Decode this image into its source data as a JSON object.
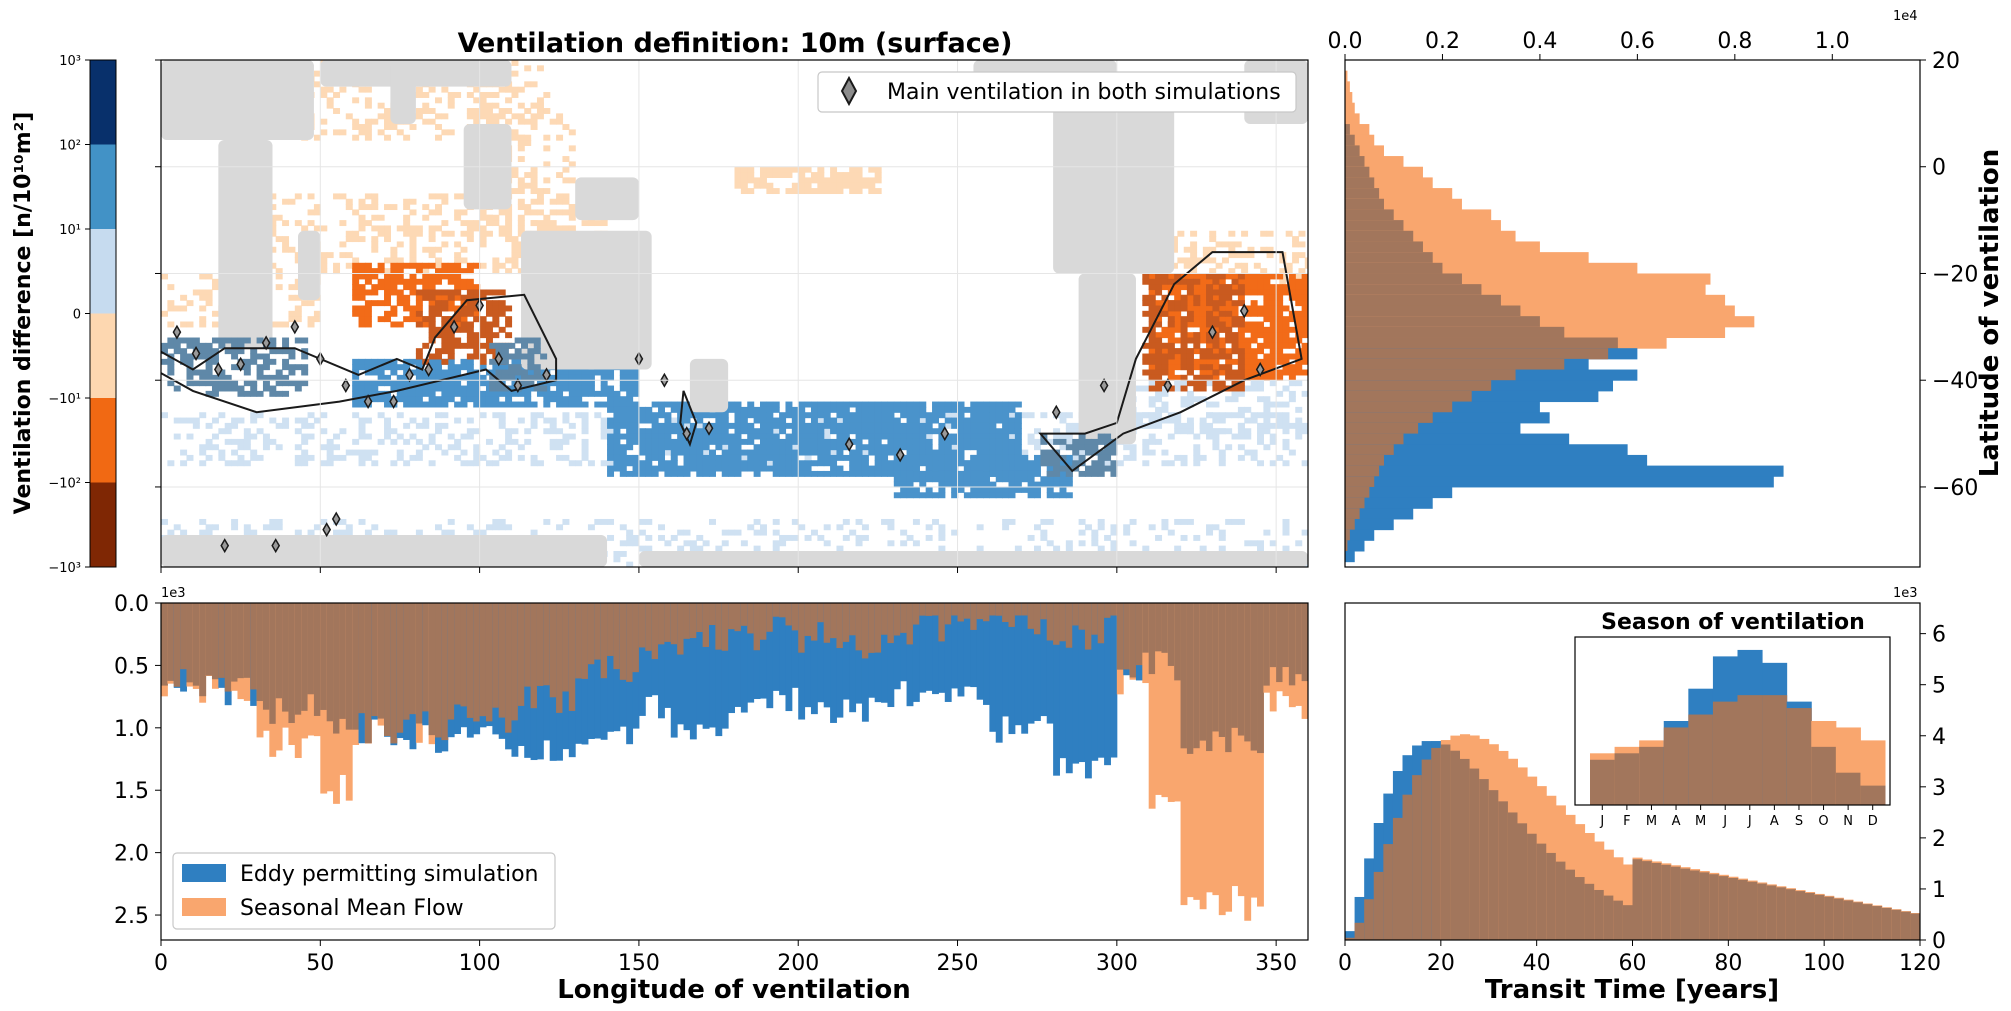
{
  "colors": {
    "eddy": "#2f7fc1",
    "smf": "#f9a66e",
    "overlap": "#a2765c",
    "land": "#d9d9d9",
    "contour": "#1a1a1a"
  },
  "colorbar": {
    "label": "Ventilation difference [n/10¹⁰m²]",
    "ticks": [
      "10³",
      "10²",
      "10¹",
      "0",
      "−10¹",
      "−10²",
      "−10³"
    ],
    "colors": [
      "#08306b",
      "#4292c6",
      "#c6dbef",
      "#fdd7b0",
      "#f16913",
      "#7f2704"
    ]
  },
  "map": {
    "title": "Ventilation definition: 10m (surface)",
    "legend": "Main ventilation in both simulations",
    "xlim": [
      0,
      360
    ],
    "ylim": [
      -75,
      20
    ],
    "colors": {
      "dblue": "#08306b",
      "mblue": "#4a93cb",
      "lblue": "#cfe1f2",
      "lorange": "#fdd9b5",
      "morange": "#f26b18",
      "overlap_orange": "#c95a1f",
      "overlap_blue": "#5f88a8"
    },
    "regions": [
      {
        "lon": [
          0,
          360
        ],
        "lat": [
          -75,
          -66
        ],
        "c": "lblue",
        "d": 0.25
      },
      {
        "lon": [
          30,
          140
        ],
        "lat": [
          -20,
          -5
        ],
        "c": "lorange",
        "d": 0.35
      },
      {
        "lon": [
          42,
          120
        ],
        "lat": [
          5,
          20
        ],
        "c": "lorange",
        "d": 0.3
      },
      {
        "lon": [
          60,
          100
        ],
        "lat": [
          -30,
          -18
        ],
        "c": "morange",
        "d": 0.7
      },
      {
        "lon": [
          100,
          130
        ],
        "lat": [
          -15,
          15
        ],
        "c": "lorange",
        "d": 0.3
      },
      {
        "lon": [
          0,
          50
        ],
        "lat": [
          -30,
          -20
        ],
        "c": "lorange",
        "d": 0.3
      },
      {
        "lon": [
          0,
          360
        ],
        "lat": [
          -56,
          -46
        ],
        "c": "lblue",
        "d": 0.35
      },
      {
        "lon": [
          60,
          150
        ],
        "lat": [
          -45,
          -36
        ],
        "c": "mblue",
        "d": 0.8
      },
      {
        "lon": [
          140,
          270
        ],
        "lat": [
          -58,
          -44
        ],
        "c": "mblue",
        "d": 0.85
      },
      {
        "lon": [
          230,
          285
        ],
        "lat": [
          -62,
          -54
        ],
        "c": "mblue",
        "d": 0.8
      },
      {
        "lon": [
          295,
          360
        ],
        "lat": [
          -22,
          -12
        ],
        "c": "lorange",
        "d": 0.4
      },
      {
        "lon": [
          310,
          360
        ],
        "lat": [
          -40,
          -20
        ],
        "c": "morange",
        "d": 0.8
      },
      {
        "lon": [
          180,
          225
        ],
        "lat": [
          -5,
          0
        ],
        "c": "lorange",
        "d": 0.7
      },
      {
        "lon": [
          300,
          360
        ],
        "lat": [
          -50,
          -40
        ],
        "c": "lblue",
        "d": 0.3
      }
    ],
    "overlaps": [
      {
        "lon": [
          0,
          45
        ],
        "lat": [
          -43,
          -32
        ],
        "c": "overlap_blue"
      },
      {
        "lon": [
          80,
          110
        ],
        "lat": [
          -37,
          -23
        ],
        "c": "overlap_orange"
      },
      {
        "lon": [
          103,
          120
        ],
        "lat": [
          -42,
          -32
        ],
        "c": "overlap_blue"
      },
      {
        "lon": [
          308,
          340
        ],
        "lat": [
          -42,
          -20
        ],
        "c": "overlap_orange"
      },
      {
        "lon": [
          276,
          300
        ],
        "lat": [
          -58,
          -50
        ],
        "c": "overlap_blue"
      }
    ],
    "contours": [
      [
        [
          -8,
          -32
        ],
        [
          10,
          -38
        ],
        [
          20,
          -34
        ],
        [
          42,
          -34
        ],
        [
          62,
          -39
        ],
        [
          74,
          -36
        ],
        [
          82,
          -38
        ],
        [
          86,
          -32
        ],
        [
          96,
          -25
        ],
        [
          114,
          -24
        ],
        [
          124,
          -36
        ],
        [
          124,
          -40
        ],
        [
          110,
          -42
        ],
        [
          102,
          -38
        ],
        [
          74,
          -42
        ],
        [
          56,
          -44
        ],
        [
          30,
          -46
        ],
        [
          10,
          -42
        ],
        [
          -8,
          -36
        ]
      ],
      [
        [
          286,
          -57
        ],
        [
          302,
          -50
        ],
        [
          320,
          -46
        ],
        [
          340,
          -40
        ],
        [
          358,
          -36
        ],
        [
          352,
          -16
        ],
        [
          330,
          -16
        ],
        [
          318,
          -22
        ],
        [
          306,
          -36
        ],
        [
          300,
          -48
        ],
        [
          290,
          -50
        ],
        [
          276,
          -50
        ]
      ],
      [
        [
          164,
          -42
        ],
        [
          168,
          -48
        ],
        [
          166,
          -52
        ],
        [
          163,
          -48
        ]
      ]
    ],
    "diamonds": [
      [
        5,
        -31
      ],
      [
        11,
        -35
      ],
      [
        18,
        -38
      ],
      [
        25,
        -37
      ],
      [
        33,
        -33
      ],
      [
        42,
        -30
      ],
      [
        50,
        -36
      ],
      [
        58,
        -41
      ],
      [
        65,
        -44
      ],
      [
        73,
        -44
      ],
      [
        78,
        -39
      ],
      [
        84,
        -38
      ],
      [
        92,
        -30
      ],
      [
        100,
        -26
      ],
      [
        106,
        -36
      ],
      [
        112,
        -41
      ],
      [
        121,
        -39
      ],
      [
        150,
        -36
      ],
      [
        158,
        -40
      ],
      [
        165,
        -50
      ],
      [
        172,
        -49
      ],
      [
        216,
        -52
      ],
      [
        232,
        -54
      ],
      [
        246,
        -50
      ],
      [
        281,
        -46
      ],
      [
        296,
        -41
      ],
      [
        316,
        -41
      ],
      [
        330,
        -31
      ],
      [
        340,
        -27
      ],
      [
        345,
        -38
      ],
      [
        20,
        -71
      ],
      [
        36,
        -71
      ],
      [
        52,
        -68
      ],
      [
        55,
        -66
      ]
    ],
    "land": [
      {
        "lon": [
          0,
          48
        ],
        "lat": [
          5,
          20
        ]
      },
      {
        "lon": [
          18,
          35
        ],
        "lat": [
          -34,
          5
        ]
      },
      {
        "lon": [
          43,
          50
        ],
        "lat": [
          -25,
          -12
        ]
      },
      {
        "lon": [
          50,
          110
        ],
        "lat": [
          15,
          20
        ]
      },
      {
        "lon": [
          72,
          80
        ],
        "lat": [
          8,
          20
        ]
      },
      {
        "lon": [
          95,
          110
        ],
        "lat": [
          -8,
          8
        ]
      },
      {
        "lon": [
          113,
          154
        ],
        "lat": [
          -38,
          -12
        ]
      },
      {
        "lon": [
          130,
          150
        ],
        "lat": [
          -10,
          -2
        ]
      },
      {
        "lon": [
          166,
          178
        ],
        "lat": [
          -46,
          -36
        ]
      },
      {
        "lon": [
          0,
          140
        ],
        "lat": [
          -75,
          -69
        ]
      },
      {
        "lon": [
          150,
          360
        ],
        "lat": [
          -75,
          -72
        ]
      },
      {
        "lon": [
          280,
          318
        ],
        "lat": [
          -20,
          12
        ]
      },
      {
        "lon": [
          288,
          306
        ],
        "lat": [
          -52,
          -20
        ]
      },
      {
        "lon": [
          255,
          300
        ],
        "lat": [
          12,
          20
        ]
      },
      {
        "lon": [
          340,
          360
        ],
        "lat": [
          8,
          20
        ]
      }
    ]
  },
  "hist_lat": {
    "ylabel": "Latitude of ventilation",
    "xlim": [
      0,
      1.18
    ],
    "ylim": [
      -75,
      20
    ],
    "xticks": [
      "0.0",
      "0.2",
      "0.4",
      "0.6",
      "0.8",
      "1.0"
    ],
    "yticks": [
      "20",
      "0",
      "−20",
      "−40",
      "−60"
    ],
    "offset": "1e4",
    "bin_lat_top": [
      20,
      18,
      16,
      14,
      12,
      10,
      8,
      6,
      4,
      2,
      0,
      -2,
      -4,
      -6,
      -8,
      -10,
      -12,
      -14,
      -16,
      -18,
      -20,
      -22,
      -24,
      -26,
      -28,
      -30,
      -32,
      -34,
      -36,
      -38,
      -40,
      -42,
      -44,
      -46,
      -48,
      -50,
      -52,
      -54,
      -56,
      -58,
      -60,
      -62,
      -64,
      -66,
      -68,
      -70,
      -72
    ],
    "eddy": [
      0.0,
      0.0,
      0.0,
      0.0,
      0.0,
      0.0,
      0.01,
      0.02,
      0.03,
      0.04,
      0.05,
      0.06,
      0.07,
      0.08,
      0.1,
      0.12,
      0.14,
      0.16,
      0.18,
      0.2,
      0.24,
      0.28,
      0.32,
      0.36,
      0.4,
      0.45,
      0.56,
      0.6,
      0.5,
      0.6,
      0.55,
      0.52,
      0.4,
      0.42,
      0.36,
      0.46,
      0.58,
      0.62,
      0.9,
      0.88,
      0.22,
      0.18,
      0.14,
      0.1,
      0.06,
      0.04,
      0.02
    ],
    "smf": [
      0.0,
      0.005,
      0.01,
      0.015,
      0.02,
      0.03,
      0.05,
      0.06,
      0.08,
      0.12,
      0.16,
      0.18,
      0.22,
      0.24,
      0.3,
      0.32,
      0.35,
      0.4,
      0.5,
      0.6,
      0.75,
      0.74,
      0.78,
      0.8,
      0.84,
      0.78,
      0.66,
      0.54,
      0.45,
      0.35,
      0.3,
      0.26,
      0.22,
      0.18,
      0.15,
      0.12,
      0.1,
      0.08,
      0.07,
      0.06,
      0.05,
      0.04,
      0.03,
      0.02,
      0.01,
      0.005,
      0.0
    ]
  },
  "hist_lon": {
    "xlabel": "Longitude of ventilation",
    "xlim": [
      0,
      360
    ],
    "ylim": [
      0,
      2.7
    ],
    "xticks": [
      "0",
      "50",
      "100",
      "150",
      "200",
      "250",
      "300",
      "350"
    ],
    "yticks": [
      "0.0",
      "0.5",
      "1.0",
      "1.5",
      "2.0",
      "2.5"
    ],
    "offset": "1e3",
    "legend": [
      "Eddy permitting simulation",
      "Seasonal Mean Flow"
    ]
  },
  "hist_tt": {
    "xlabel": "Transit Time [years]",
    "xlim": [
      0,
      120
    ],
    "ylim": [
      0,
      6.6
    ],
    "xticks": [
      "0",
      "20",
      "40",
      "60",
      "80",
      "100",
      "120"
    ],
    "yticks": [
      "0",
      "1",
      "2",
      "3",
      "4",
      "5",
      "6"
    ],
    "offset": "1e3",
    "inset": {
      "title": "Season of ventilation",
      "months": [
        "J",
        "F",
        "M",
        "A",
        "M",
        "J",
        "J",
        "A",
        "S",
        "O",
        "N",
        "D"
      ],
      "eddy": [
        2.3,
        2.4,
        2.5,
        2.9,
        3.4,
        3.9,
        4.0,
        3.8,
        3.2,
        2.5,
        2.1,
        1.9
      ],
      "smf": [
        2.4,
        2.5,
        2.6,
        2.8,
        3.0,
        3.2,
        3.3,
        3.3,
        3.1,
        2.9,
        2.8,
        2.6
      ]
    }
  }
}
